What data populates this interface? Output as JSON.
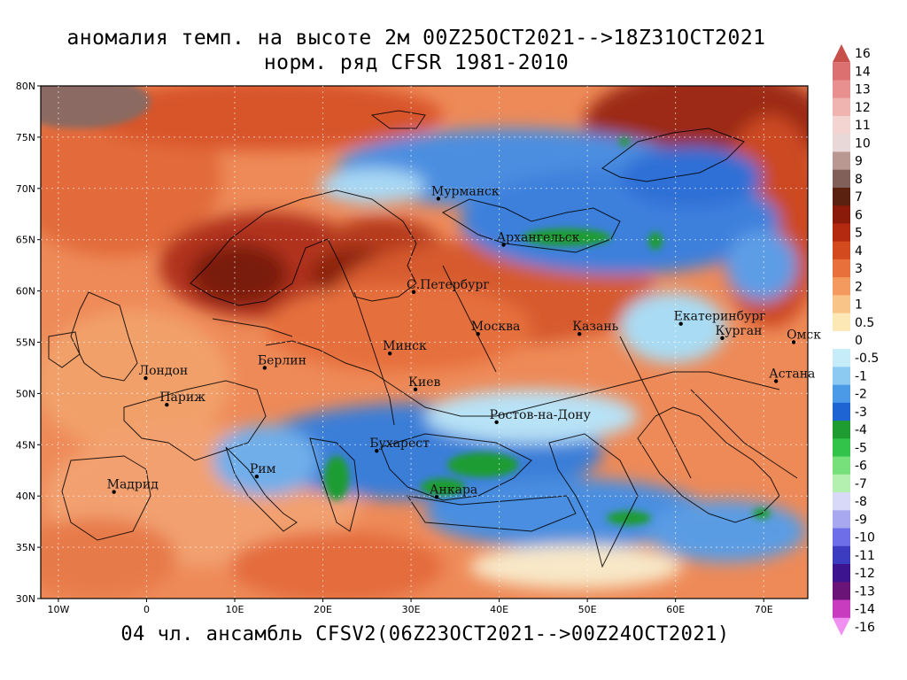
{
  "title_line1": "аномалия темп. на высоте 2м 00Z25OCT2021-->18Z31OCT2021",
  "title_line2": "норм. ряд CFSR 1981-2010",
  "footer": "04 чл. ансамбль CFSV2(06Z23OCT2021-->00Z24OCT2021)",
  "map": {
    "lon_range": [
      -12,
      75
    ],
    "lat_range": [
      30,
      80
    ],
    "lat_ticks": [
      "30N",
      "35N",
      "40N",
      "45N",
      "50N",
      "55N",
      "60N",
      "65N",
      "70N",
      "75N",
      "80N"
    ],
    "lon_ticks": [
      "10W",
      "0",
      "10E",
      "20E",
      "30E",
      "40E",
      "50E",
      "60E",
      "70E"
    ],
    "cities": [
      {
        "name": "Мурманск",
        "lon": 33.1,
        "lat": 69.0
      },
      {
        "name": "Архангельск",
        "lon": 40.5,
        "lat": 64.5
      },
      {
        "name": "С.Петербург",
        "lon": 30.3,
        "lat": 59.9
      },
      {
        "name": "Москва",
        "lon": 37.6,
        "lat": 55.8
      },
      {
        "name": "Казань",
        "lon": 49.1,
        "lat": 55.8
      },
      {
        "name": "Екатеринбург",
        "lon": 60.6,
        "lat": 56.8
      },
      {
        "name": "Курган",
        "lon": 65.3,
        "lat": 55.4
      },
      {
        "name": "Омск",
        "lon": 73.4,
        "lat": 55.0
      },
      {
        "name": "Астана",
        "lon": 71.4,
        "lat": 51.2
      },
      {
        "name": "Минск",
        "lon": 27.6,
        "lat": 53.9
      },
      {
        "name": "Киев",
        "lon": 30.5,
        "lat": 50.4
      },
      {
        "name": "Берлин",
        "lon": 13.4,
        "lat": 52.5
      },
      {
        "name": "Лондон",
        "lon": -0.1,
        "lat": 51.5
      },
      {
        "name": "Париж",
        "lon": 2.3,
        "lat": 48.9
      },
      {
        "name": "Ростов-на-Дону",
        "lon": 39.7,
        "lat": 47.2
      },
      {
        "name": "Бухарест",
        "lon": 26.1,
        "lat": 44.4
      },
      {
        "name": "Рим",
        "lon": 12.5,
        "lat": 41.9
      },
      {
        "name": "Мадрид",
        "lon": -3.7,
        "lat": 40.4
      },
      {
        "name": "Анкара",
        "lon": 32.9,
        "lat": 39.9
      }
    ]
  },
  "colorbar": {
    "labels": [
      "16",
      "14",
      "13",
      "12",
      "11",
      "10",
      "9",
      "8",
      "7",
      "6",
      "5",
      "4",
      "3",
      "2",
      "1",
      "0.5",
      "0",
      "-0.5",
      "-1",
      "-2",
      "-3",
      "-4",
      "-5",
      "-6",
      "-7",
      "-8",
      "-9",
      "-10",
      "-11",
      "-12",
      "-13",
      "-14",
      "-16"
    ],
    "colors": [
      "#c8504a",
      "#dc7070",
      "#e89090",
      "#f0b4b0",
      "#f4d4d0",
      "#e8d8d8",
      "#b89890",
      "#806058",
      "#5a2010",
      "#8a1a0a",
      "#b42a10",
      "#d24a1e",
      "#e8703a",
      "#f49a5e",
      "#f8c488",
      "#fce8b4",
      "#ffffff",
      "#c6ecfa",
      "#8ccaf2",
      "#4a9ae8",
      "#1e64d2",
      "#1e9c32",
      "#32c44a",
      "#78e07a",
      "#b4f0b0",
      "#d8d8f8",
      "#a8a8f0",
      "#6e6ee8",
      "#3c3cc0",
      "#3c1490",
      "#6a1478",
      "#c83cc0",
      "#f090f0"
    ]
  }
}
